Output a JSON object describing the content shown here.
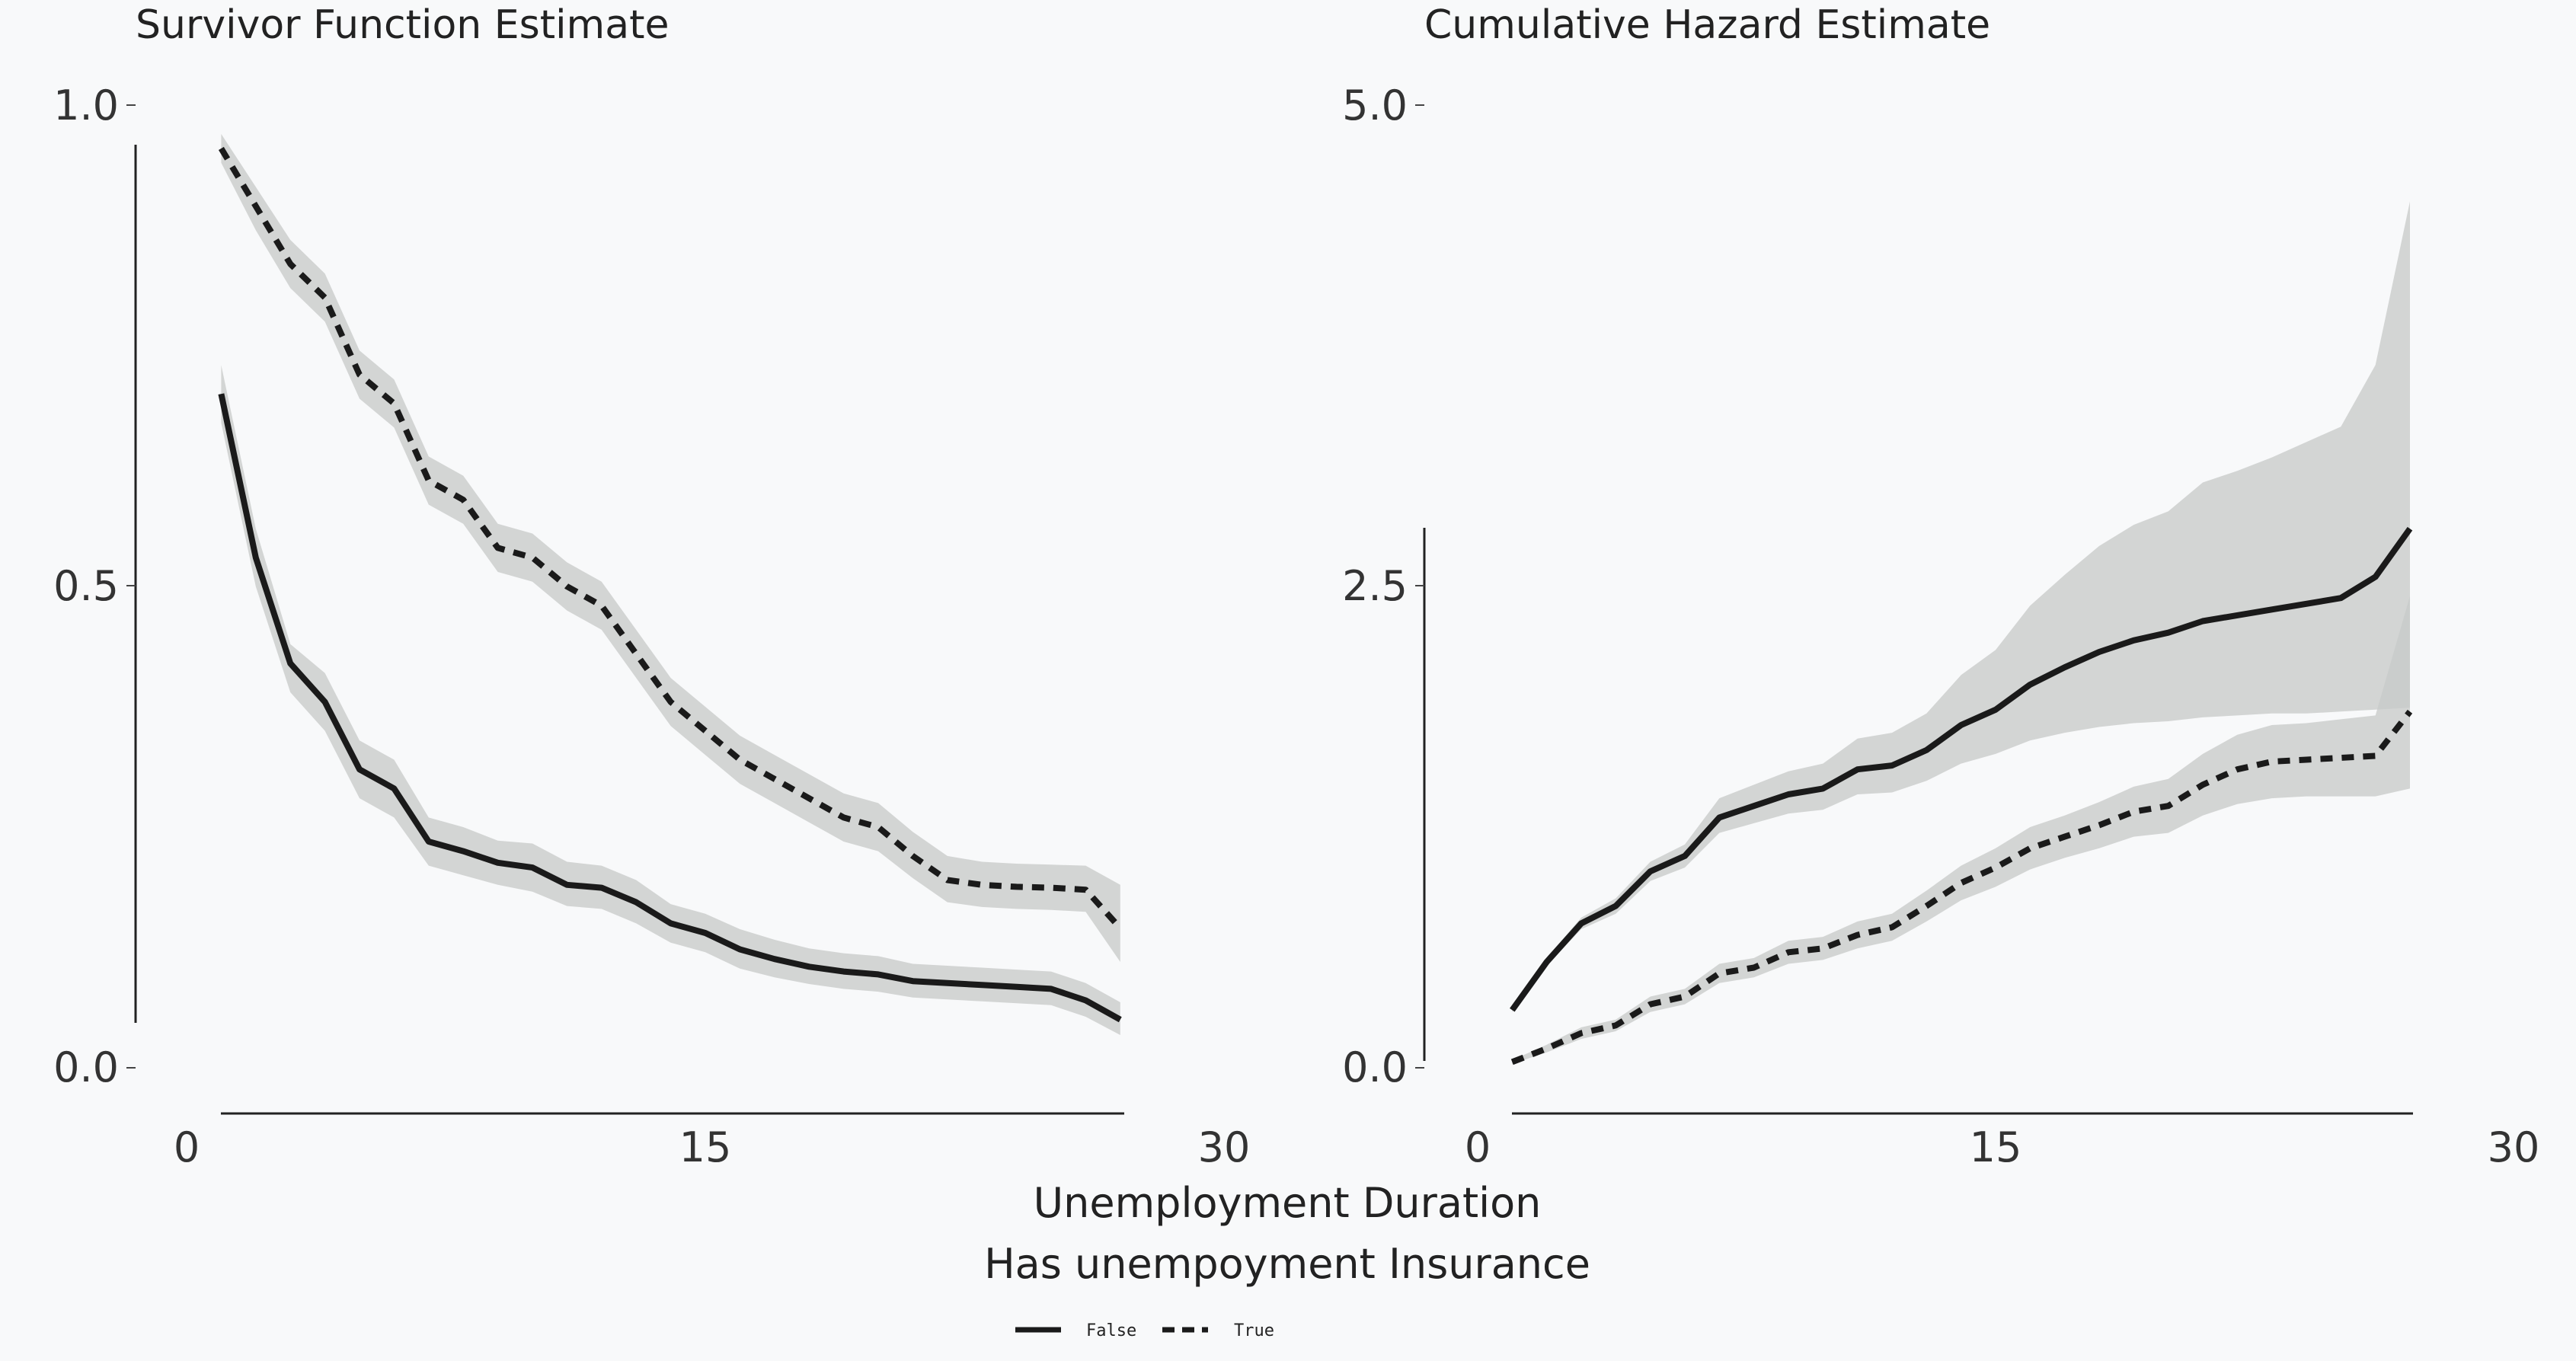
{
  "chart_data": [
    {
      "type": "line",
      "title": "Survivor Function Estimate",
      "xlim": [
        0,
        30
      ],
      "ylim": [
        0,
        1
      ],
      "xticks": [
        "0",
        "15",
        "30"
      ],
      "yticks": [
        "0.0",
        "0.5",
        "1.0"
      ],
      "series": [
        {
          "name": "False",
          "style": "solid",
          "x": [
            1,
            2,
            3,
            4,
            5,
            6,
            7,
            8,
            9,
            10,
            11,
            12,
            13,
            14,
            15,
            16,
            17,
            18,
            19,
            20,
            21,
            22,
            23,
            24,
            25,
            26,
            27
          ],
          "y": [
            0.7,
            0.53,
            0.42,
            0.38,
            0.31,
            0.29,
            0.235,
            0.225,
            0.213,
            0.208,
            0.19,
            0.187,
            0.172,
            0.15,
            0.14,
            0.123,
            0.113,
            0.105,
            0.1,
            0.097,
            0.09,
            0.088,
            0.086,
            0.084,
            0.082,
            0.07,
            0.05
          ],
          "lower": [
            0.67,
            0.5,
            0.39,
            0.35,
            0.28,
            0.26,
            0.21,
            0.2,
            0.19,
            0.183,
            0.168,
            0.165,
            0.15,
            0.13,
            0.12,
            0.103,
            0.094,
            0.087,
            0.082,
            0.079,
            0.073,
            0.071,
            0.069,
            0.067,
            0.065,
            0.053,
            0.034
          ],
          "upper": [
            0.73,
            0.56,
            0.44,
            0.41,
            0.34,
            0.32,
            0.26,
            0.25,
            0.236,
            0.233,
            0.214,
            0.21,
            0.195,
            0.17,
            0.16,
            0.144,
            0.133,
            0.124,
            0.119,
            0.116,
            0.108,
            0.106,
            0.104,
            0.102,
            0.1,
            0.088,
            0.068
          ]
        },
        {
          "name": "True",
          "style": "dashed",
          "x": [
            1,
            2,
            3,
            4,
            5,
            6,
            7,
            8,
            9,
            10,
            11,
            12,
            13,
            14,
            15,
            16,
            17,
            18,
            19,
            20,
            21,
            22,
            23,
            24,
            25,
            26,
            27
          ],
          "y": [
            0.955,
            0.895,
            0.835,
            0.8,
            0.72,
            0.69,
            0.61,
            0.59,
            0.54,
            0.53,
            0.5,
            0.48,
            0.43,
            0.38,
            0.35,
            0.32,
            0.3,
            0.28,
            0.26,
            0.25,
            0.22,
            0.195,
            0.19,
            0.188,
            0.187,
            0.185,
            0.145
          ],
          "lower": [
            0.94,
            0.87,
            0.81,
            0.775,
            0.695,
            0.665,
            0.585,
            0.565,
            0.515,
            0.505,
            0.475,
            0.455,
            0.405,
            0.355,
            0.325,
            0.295,
            0.275,
            0.255,
            0.235,
            0.225,
            0.197,
            0.172,
            0.167,
            0.165,
            0.164,
            0.162,
            0.11
          ],
          "upper": [
            0.97,
            0.915,
            0.86,
            0.825,
            0.745,
            0.715,
            0.635,
            0.615,
            0.565,
            0.555,
            0.525,
            0.505,
            0.455,
            0.405,
            0.375,
            0.345,
            0.325,
            0.305,
            0.285,
            0.275,
            0.245,
            0.22,
            0.214,
            0.212,
            0.211,
            0.21,
            0.19
          ]
        }
      ]
    },
    {
      "type": "line",
      "title": "Cumulative Hazard Estimate",
      "xlim": [
        0,
        30
      ],
      "ylim": [
        0,
        5
      ],
      "xticks": [
        "0",
        "15",
        "30"
      ],
      "yticks": [
        "0.0",
        "2.5",
        "5.0"
      ],
      "series": [
        {
          "name": "False",
          "style": "solid",
          "x": [
            1,
            2,
            3,
            4,
            5,
            6,
            7,
            8,
            9,
            10,
            11,
            12,
            13,
            14,
            15,
            16,
            17,
            18,
            19,
            20,
            21,
            22,
            23,
            24,
            25,
            26,
            27
          ],
          "y": [
            0.3,
            0.55,
            0.75,
            0.84,
            1.02,
            1.1,
            1.3,
            1.36,
            1.42,
            1.45,
            1.55,
            1.57,
            1.65,
            1.78,
            1.86,
            1.99,
            2.08,
            2.16,
            2.22,
            2.26,
            2.32,
            2.35,
            2.38,
            2.41,
            2.44,
            2.55,
            2.8
          ],
          "lower": [
            0.29,
            0.53,
            0.72,
            0.8,
            0.97,
            1.04,
            1.22,
            1.27,
            1.32,
            1.34,
            1.42,
            1.43,
            1.49,
            1.58,
            1.63,
            1.7,
            1.74,
            1.77,
            1.79,
            1.8,
            1.82,
            1.83,
            1.84,
            1.84,
            1.85,
            1.86,
            1.87
          ],
          "upper": [
            0.31,
            0.57,
            0.78,
            0.88,
            1.07,
            1.16,
            1.4,
            1.47,
            1.54,
            1.58,
            1.71,
            1.74,
            1.84,
            2.04,
            2.17,
            2.4,
            2.56,
            2.71,
            2.82,
            2.89,
            3.04,
            3.1,
            3.17,
            3.25,
            3.33,
            3.65,
            4.5
          ]
        },
        {
          "name": "True",
          "style": "dashed",
          "x": [
            1,
            2,
            3,
            4,
            5,
            6,
            7,
            8,
            9,
            10,
            11,
            12,
            13,
            14,
            15,
            16,
            17,
            18,
            19,
            20,
            21,
            22,
            23,
            24,
            25,
            26,
            27
          ],
          "y": [
            0.03,
            0.1,
            0.18,
            0.22,
            0.33,
            0.37,
            0.49,
            0.52,
            0.6,
            0.62,
            0.69,
            0.73,
            0.84,
            0.96,
            1.04,
            1.14,
            1.2,
            1.26,
            1.33,
            1.36,
            1.47,
            1.55,
            1.59,
            1.6,
            1.61,
            1.62,
            1.85
          ],
          "lower": [
            0.02,
            0.08,
            0.15,
            0.19,
            0.29,
            0.33,
            0.44,
            0.47,
            0.54,
            0.56,
            0.62,
            0.66,
            0.76,
            0.87,
            0.94,
            1.03,
            1.09,
            1.14,
            1.2,
            1.22,
            1.31,
            1.37,
            1.4,
            1.41,
            1.41,
            1.41,
            1.45
          ],
          "upper": [
            0.04,
            0.12,
            0.21,
            0.25,
            0.37,
            0.41,
            0.54,
            0.57,
            0.66,
            0.68,
            0.76,
            0.8,
            0.92,
            1.05,
            1.14,
            1.25,
            1.31,
            1.38,
            1.46,
            1.5,
            1.63,
            1.73,
            1.78,
            1.79,
            1.81,
            1.83,
            2.45
          ]
        }
      ]
    }
  ],
  "xlabel": "Unemployment Duration",
  "legend": {
    "title": "Has unempoyment Insurance",
    "placement": "bottom-center",
    "entries": [
      {
        "label": "False",
        "style": "solid"
      },
      {
        "label": "True",
        "style": "dashed"
      }
    ]
  },
  "colors": {
    "line": "#1a1a1a",
    "band": "#c8cac9",
    "background": "#f8f9fa"
  }
}
